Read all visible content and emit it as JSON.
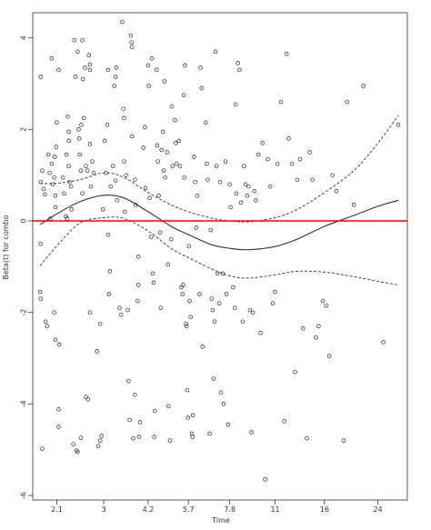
{
  "chart_data": {
    "type": "scatter",
    "xlabel": "Time",
    "ylabel": "Beta(t) for combo",
    "x_scale": "log",
    "xlim": [
      1.75,
      30
    ],
    "ylim": [
      -6.1,
      4.55
    ],
    "x_ticks": [
      {
        "value": 2.1,
        "label": "2.1"
      },
      {
        "value": 3,
        "label": "3"
      },
      {
        "value": 4.2,
        "label": "4.2"
      },
      {
        "value": 5.7,
        "label": "5.7"
      },
      {
        "value": 7.8,
        "label": "7.8"
      },
      {
        "value": 11,
        "label": "11"
      },
      {
        "value": 16,
        "label": "16"
      },
      {
        "value": 24,
        "label": "24"
      }
    ],
    "y_ticks": [
      {
        "value": -6,
        "label": "-6"
      },
      {
        "value": -4,
        "label": "-4"
      },
      {
        "value": -2,
        "label": "-2"
      },
      {
        "value": 0,
        "label": "0"
      },
      {
        "value": 2,
        "label": "2"
      },
      {
        "value": 4,
        "label": "4"
      }
    ],
    "grid": false,
    "reference_line": {
      "y": 0,
      "color": "#ff0000"
    },
    "fit": {
      "x": [
        1.85,
        2.1,
        2.5,
        3.0,
        3.5,
        4.2,
        5.0,
        5.7,
        6.8,
        7.8,
        9.0,
        11.0,
        13.0,
        16.0,
        20.0,
        24.0,
        28.0
      ],
      "y": [
        -0.08,
        0.15,
        0.42,
        0.56,
        0.5,
        0.2,
        -0.12,
        -0.3,
        -0.52,
        -0.6,
        -0.63,
        -0.56,
        -0.4,
        -0.12,
        0.12,
        0.32,
        0.45
      ],
      "upper": [
        0.82,
        0.82,
        0.9,
        1.05,
        0.95,
        0.62,
        0.35,
        0.2,
        0.06,
        0.0,
        -0.02,
        0.07,
        0.25,
        0.62,
        1.1,
        1.7,
        2.3
      ],
      "lower": [
        -0.98,
        -0.55,
        -0.05,
        0.07,
        0.05,
        -0.22,
        -0.6,
        -0.8,
        -1.05,
        -1.2,
        -1.25,
        -1.18,
        -1.1,
        -1.12,
        -1.22,
        -1.32,
        -1.4
      ]
    },
    "series": [
      {
        "points": [
          [
            1.86,
            3.15
          ],
          [
            1.88,
            1.1
          ],
          [
            1.86,
            0.85
          ],
          [
            1.9,
            0.7
          ],
          [
            1.92,
            0.58
          ],
          [
            1.86,
            -0.5
          ],
          [
            1.85,
            -1.55
          ],
          [
            1.86,
            -1.7
          ],
          [
            1.93,
            -2.2
          ],
          [
            1.95,
            -2.3
          ],
          [
            1.88,
            -4.98
          ],
          [
            2.0,
            0.05
          ],
          [
            1.97,
            1.45
          ],
          [
            1.99,
            1.05
          ],
          [
            2.02,
            1.25
          ],
          [
            2.04,
            0.8
          ],
          [
            2.06,
            0.95
          ],
          [
            2.08,
            0.55
          ],
          [
            2.08,
            0.3
          ],
          [
            2.02,
            3.55
          ],
          [
            2.13,
            3.3
          ],
          [
            2.1,
            2.15
          ],
          [
            2.09,
            1.62
          ],
          [
            2.07,
            1.4
          ],
          [
            2.06,
            -2.0
          ],
          [
            2.08,
            -2.6
          ],
          [
            2.14,
            -2.7
          ],
          [
            2.13,
            -4.12
          ],
          [
            2.13,
            -4.5
          ],
          [
            2.2,
            0.95
          ],
          [
            2.22,
            0.6
          ],
          [
            2.25,
            0.1
          ],
          [
            2.26,
            1.45
          ],
          [
            2.3,
            1.75
          ],
          [
            2.3,
            1.2
          ],
          [
            2.31,
            0.85
          ],
          [
            2.34,
            0.75
          ],
          [
            2.35,
            0.25
          ],
          [
            2.28,
            2.28
          ],
          [
            2.3,
            1.95
          ],
          [
            2.27,
            0.05
          ],
          [
            2.4,
            3.95
          ],
          [
            2.42,
            3.15
          ],
          [
            2.46,
            3.7
          ],
          [
            2.48,
            2.0
          ],
          [
            2.49,
            1.8
          ],
          [
            2.5,
            1.45
          ],
          [
            2.52,
            1.1
          ],
          [
            2.55,
            0.6
          ],
          [
            2.55,
            3.95
          ],
          [
            2.53,
            2.1
          ],
          [
            2.38,
            -4.88
          ],
          [
            2.44,
            -5.02
          ],
          [
            2.46,
            -5.05
          ],
          [
            2.52,
            -4.74
          ],
          [
            2.56,
            3.1
          ],
          [
            2.6,
            3.35
          ],
          [
            2.68,
            3.62
          ],
          [
            2.7,
            3.42
          ],
          [
            2.7,
            3.3
          ],
          [
            2.62,
            1.2
          ],
          [
            2.65,
            1.1
          ],
          [
            2.58,
            2.25
          ],
          [
            2.62,
            -3.85
          ],
          [
            2.66,
            -3.9
          ],
          [
            2.7,
            -2.0
          ],
          [
            2.7,
            1.68
          ],
          [
            2.75,
            1.3
          ],
          [
            2.78,
            1.05
          ],
          [
            2.72,
            0.75
          ],
          [
            2.85,
            -2.85
          ],
          [
            2.88,
            -4.92
          ],
          [
            2.92,
            -4.8
          ],
          [
            2.95,
            -4.7
          ],
          [
            2.92,
            -2.25
          ],
          [
            2.98,
            0.25
          ],
          [
            3.02,
            1.75
          ],
          [
            3.05,
            1.05
          ],
          [
            3.08,
            2.1
          ],
          [
            3.1,
            3.3
          ],
          [
            3.12,
            -1.6
          ],
          [
            3.14,
            -1.1
          ],
          [
            3.1,
            -0.3
          ],
          [
            3.16,
            0.75
          ],
          [
            3.25,
            2.95
          ],
          [
            3.28,
            3.15
          ],
          [
            3.3,
            3.35
          ],
          [
            3.22,
            1.2
          ],
          [
            3.28,
            0.88
          ],
          [
            3.32,
            0.45
          ],
          [
            3.38,
            -1.9
          ],
          [
            3.42,
            -2.05
          ],
          [
            3.45,
            4.35
          ],
          [
            3.48,
            2.45
          ],
          [
            3.5,
            2.25
          ],
          [
            3.5,
            1.3
          ],
          [
            3.52,
            0.2
          ],
          [
            3.55,
            1.0
          ],
          [
            3.6,
            -1.95
          ],
          [
            3.62,
            -3.5
          ],
          [
            3.65,
            -4.35
          ],
          [
            3.68,
            4.05
          ],
          [
            3.7,
            3.9
          ],
          [
            3.72,
            3.8
          ],
          [
            3.75,
            -4.75
          ],
          [
            3.8,
            -3.8
          ],
          [
            3.72,
            1.85
          ],
          [
            3.8,
            0.9
          ],
          [
            3.82,
            0.35
          ],
          [
            3.88,
            -1.75
          ],
          [
            3.9,
            -1.4
          ],
          [
            3.9,
            -0.78
          ],
          [
            3.95,
            -4.4
          ],
          [
            3.92,
            -4.72
          ],
          [
            4.05,
            1.6
          ],
          [
            4.1,
            2.05
          ],
          [
            4.12,
            0.72
          ],
          [
            4.2,
            3.4
          ],
          [
            4.22,
            2.95
          ],
          [
            4.25,
            0.5
          ],
          [
            4.3,
            -0.35
          ],
          [
            4.32,
            3.55
          ],
          [
            4.35,
            -1.15
          ],
          [
            4.38,
            -1.35
          ],
          [
            4.4,
            -4.72
          ],
          [
            4.42,
            -4.15
          ],
          [
            4.48,
            3.3
          ],
          [
            4.5,
            1.65
          ],
          [
            4.52,
            1.3
          ],
          [
            4.55,
            0.55
          ],
          [
            4.6,
            -0.25
          ],
          [
            4.62,
            -1.9
          ],
          [
            4.65,
            1.55
          ],
          [
            4.7,
            1.95
          ],
          [
            4.72,
            1.1
          ],
          [
            4.75,
            3.05
          ],
          [
            4.78,
            0.95
          ],
          [
            4.85,
            1.5
          ],
          [
            4.88,
            -0.95
          ],
          [
            4.9,
            -4.05
          ],
          [
            4.95,
            -4.8
          ],
          [
            5.0,
            -0.4
          ],
          [
            5.02,
            2.5
          ],
          [
            5.05,
            1.2
          ],
          [
            5.15,
            2.2
          ],
          [
            5.18,
            1.7
          ],
          [
            5.2,
            1.25
          ],
          [
            5.3,
            1.75
          ],
          [
            5.35,
            1.2
          ],
          [
            5.4,
            -1.45
          ],
          [
            5.45,
            -1.6
          ],
          [
            5.48,
            -1.4
          ],
          [
            5.5,
            2.75
          ],
          [
            5.55,
            3.4
          ],
          [
            5.52,
            0.95
          ],
          [
            5.6,
            -2.25
          ],
          [
            5.62,
            -2.3
          ],
          [
            5.65,
            -3.7
          ],
          [
            5.68,
            -4.3
          ],
          [
            5.72,
            -0.55
          ],
          [
            5.75,
            -1.75
          ],
          [
            5.8,
            -2.1
          ],
          [
            5.85,
            -4.65
          ],
          [
            5.88,
            -4.72
          ],
          [
            5.9,
            -4.25
          ],
          [
            5.95,
            1.4
          ],
          [
            6.0,
            0.85
          ],
          [
            6.05,
            -0.15
          ],
          [
            6.1,
            0.55
          ],
          [
            6.2,
            -1.6
          ],
          [
            6.25,
            3.35
          ],
          [
            6.3,
            2.9
          ],
          [
            6.35,
            -2.75
          ],
          [
            6.5,
            2.15
          ],
          [
            6.55,
            1.25
          ],
          [
            6.6,
            0.9
          ],
          [
            6.7,
            -4.65
          ],
          [
            6.75,
            -0.2
          ],
          [
            6.8,
            -1.7
          ],
          [
            6.85,
            -1.95
          ],
          [
            6.9,
            -3.45
          ],
          [
            6.95,
            -2.2
          ],
          [
            7.0,
            3.7
          ],
          [
            7.05,
            1.2
          ],
          [
            7.1,
            -1.15
          ],
          [
            7.2,
            -1.8
          ],
          [
            7.25,
            0.85
          ],
          [
            7.3,
            -3.75
          ],
          [
            7.4,
            -1.15
          ],
          [
            7.45,
            -4.0
          ],
          [
            7.55,
            1.3
          ],
          [
            7.6,
            -1.6
          ],
          [
            7.7,
            -4.45
          ],
          [
            7.8,
            0.8
          ],
          [
            7.85,
            0.3
          ],
          [
            8.0,
            -1.45
          ],
          [
            8.1,
            -1.9
          ],
          [
            8.15,
            2.55
          ],
          [
            8.2,
            0.6
          ],
          [
            8.3,
            3.45
          ],
          [
            8.4,
            3.3
          ],
          [
            8.5,
            0.4
          ],
          [
            8.6,
            -2.2
          ],
          [
            8.7,
            1.2
          ],
          [
            8.8,
            0.8
          ],
          [
            8.9,
            0.55
          ],
          [
            9.0,
            0.75
          ],
          [
            9.1,
            -1.95
          ],
          [
            9.2,
            -4.62
          ],
          [
            9.3,
            -2.0
          ],
          [
            9.4,
            0.65
          ],
          [
            9.5,
            0.45
          ],
          [
            9.7,
            1.45
          ],
          [
            9.85,
            -2.45
          ],
          [
            10.0,
            1.7
          ],
          [
            10.2,
            -5.65
          ],
          [
            10.4,
            1.35
          ],
          [
            10.6,
            0.75
          ],
          [
            10.8,
            -1.8
          ],
          [
            11.0,
            -1.55
          ],
          [
            11.2,
            1.25
          ],
          [
            11.5,
            2.6
          ],
          [
            11.8,
            -4.38
          ],
          [
            12.0,
            3.65
          ],
          [
            12.2,
            1.8
          ],
          [
            12.5,
            1.25
          ],
          [
            12.8,
            -3.3
          ],
          [
            13.0,
            0.9
          ],
          [
            13.3,
            1.35
          ],
          [
            13.6,
            -2.35
          ],
          [
            14.0,
            -4.75
          ],
          [
            14.3,
            1.5
          ],
          [
            14.6,
            0.9
          ],
          [
            15.0,
            -2.55
          ],
          [
            15.3,
            -2.3
          ],
          [
            15.8,
            -1.75
          ],
          [
            16.2,
            -1.85
          ],
          [
            16.6,
            -2.95
          ],
          [
            17.0,
            1.0
          ],
          [
            17.5,
            0.65
          ],
          [
            18.5,
            -4.8
          ],
          [
            19.0,
            2.6
          ],
          [
            20.0,
            0.35
          ],
          [
            21.5,
            2.95
          ],
          [
            25.0,
            -2.65
          ],
          [
            28.0,
            2.1
          ]
        ]
      }
    ]
  }
}
